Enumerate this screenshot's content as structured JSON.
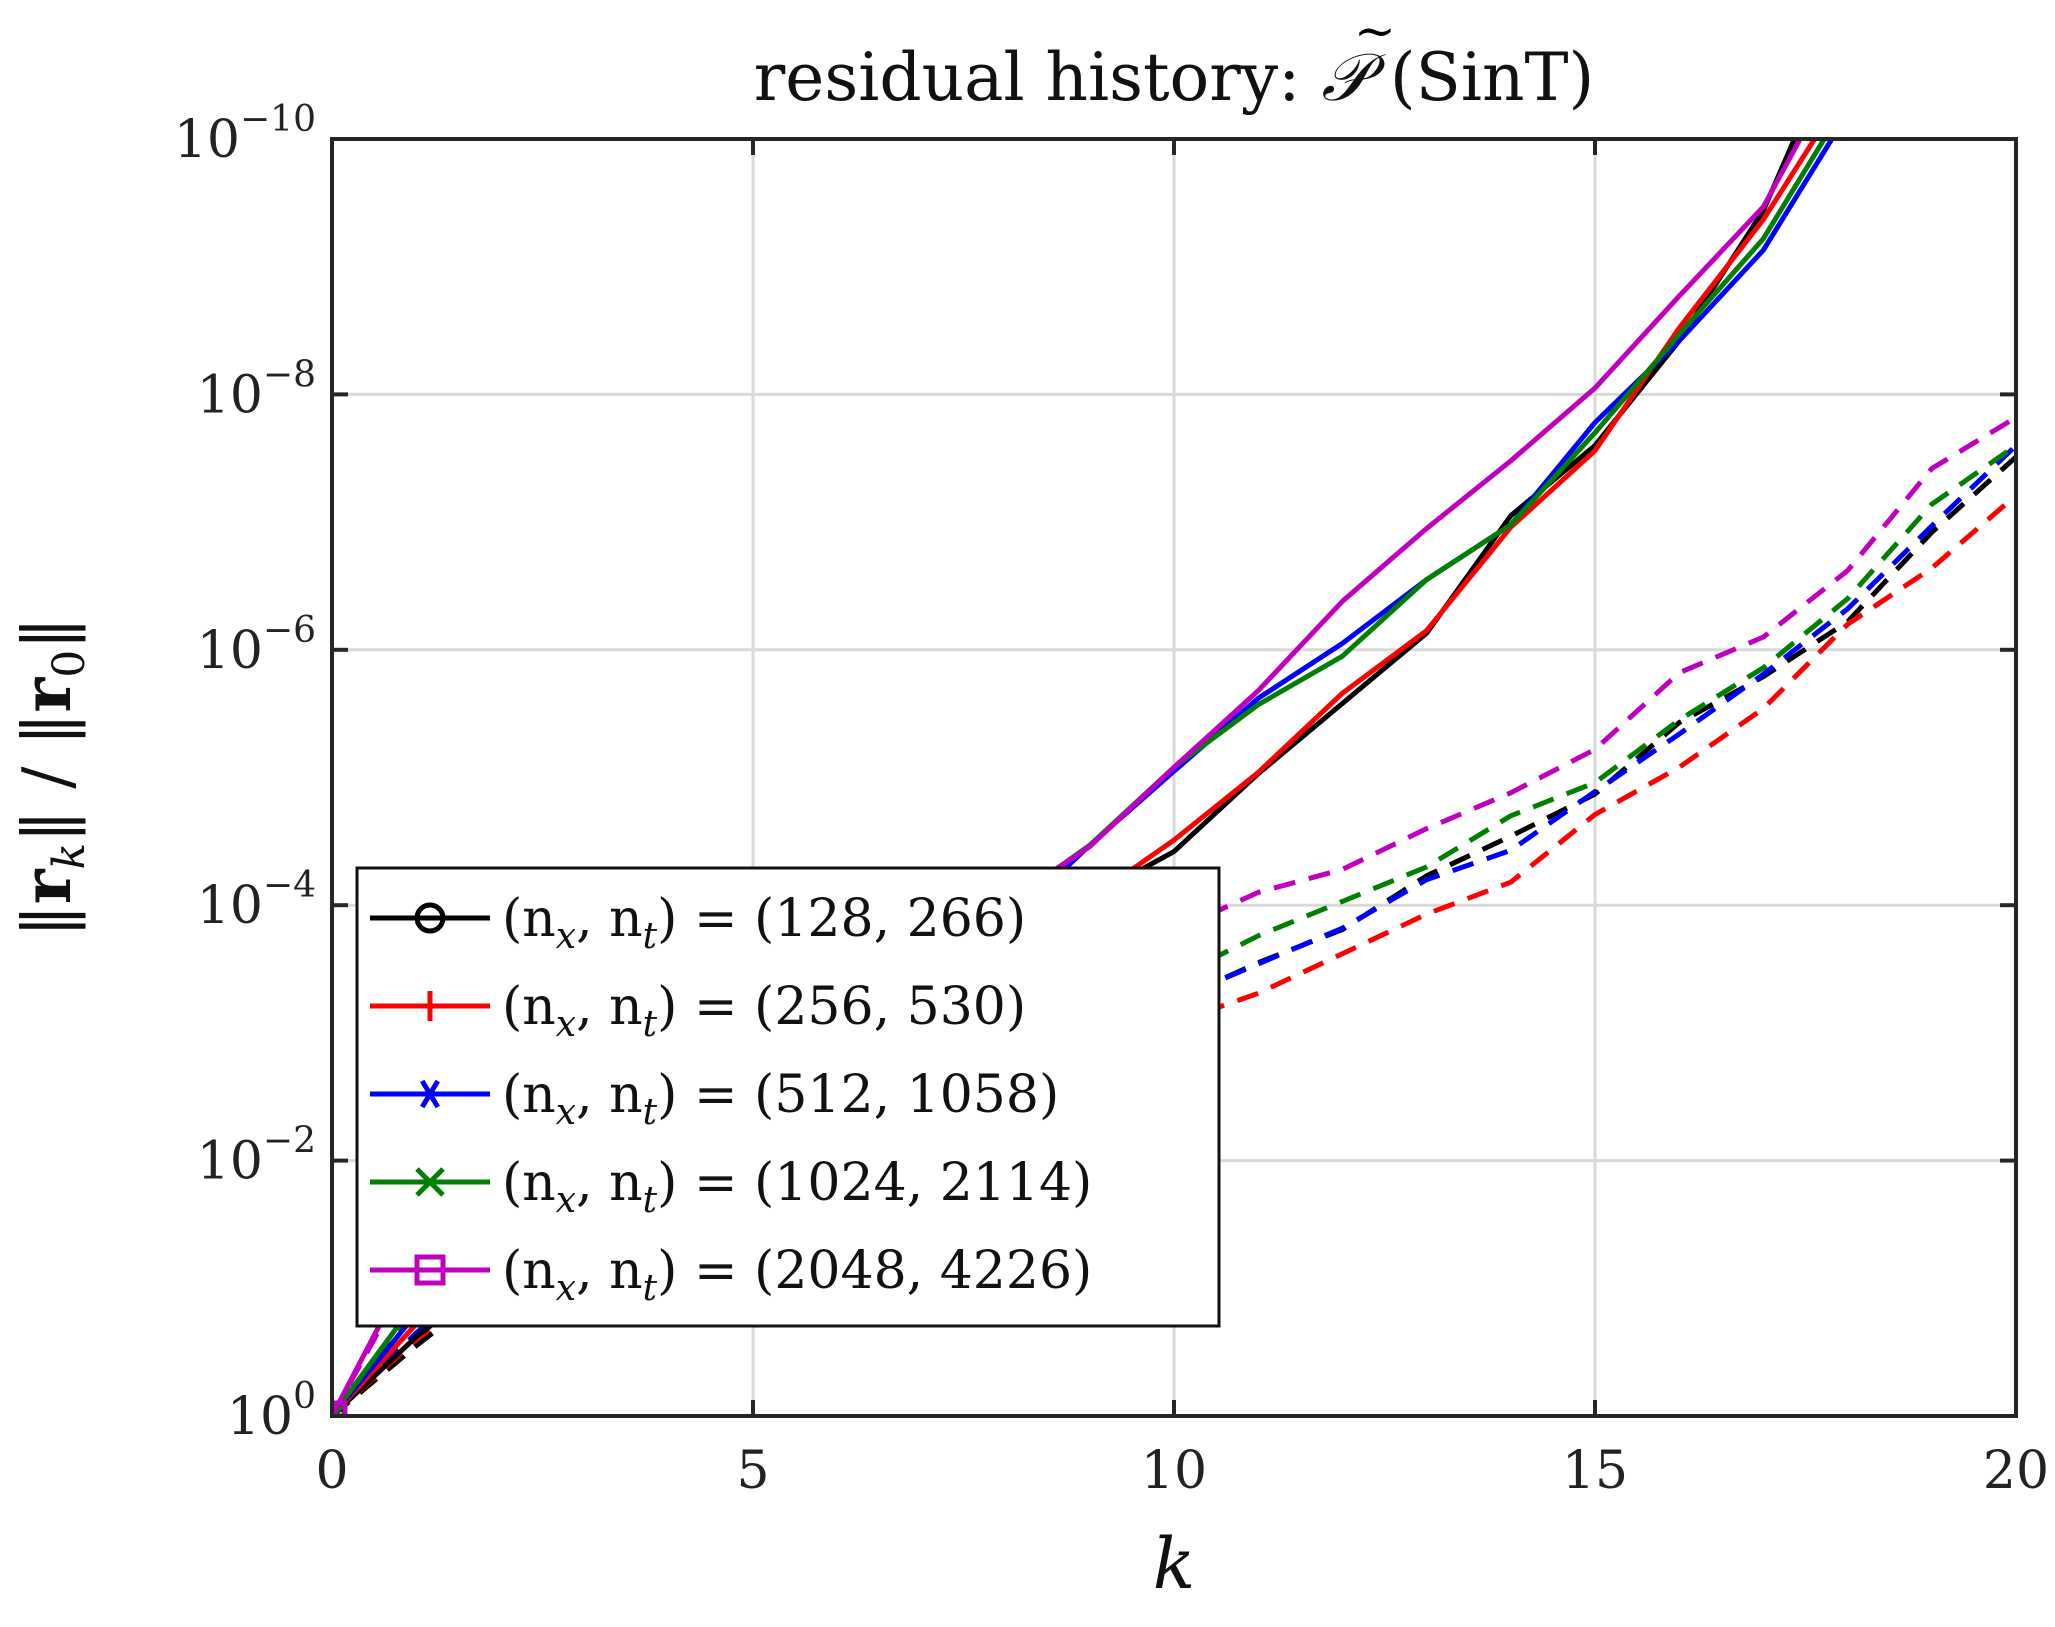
{
  "chart_data": {
    "type": "line",
    "title": "residual history: P̃ (SinT)",
    "title_prefix": "residual history: ",
    "title_symbol": "𝒫",
    "title_suffix": " (SinT)",
    "xlabel": "k",
    "ylabel": "||r_k|| / ||r_0||",
    "ylabel_parts": [
      "‖",
      "r",
      "k",
      "‖ / ‖",
      "r",
      "0",
      "‖"
    ],
    "xscale": "linear",
    "yscale": "log",
    "xlim": [
      0,
      20
    ],
    "ylim_exponent": [
      -10,
      0
    ],
    "xticks": [
      0,
      5,
      10,
      15,
      20
    ],
    "yticks_exponent": [
      0,
      -2,
      -4,
      -6,
      -8,
      -10
    ],
    "ytick_base": "10",
    "grid": true,
    "legend_location": "lower-left",
    "line_styles": {
      "solid": "preconditioner variant A",
      "dashed": "preconditioner variant B"
    },
    "series": [
      {
        "name": "(n_x, n_t) = (128, 266)",
        "legend_math": "(n",
        "sub1": "x",
        "mid": ", n",
        "sub2": "t",
        "tail": ") = (128, 266)",
        "color": "#000000",
        "marker": "circle",
        "solid_log10": [
          [
            0,
            0
          ],
          [
            1,
            -0.62
          ],
          [
            2,
            -1.12
          ],
          [
            3,
            -1.52
          ],
          [
            4,
            -1.66
          ],
          [
            5,
            -2.48
          ],
          [
            6,
            -2.72
          ],
          [
            7,
            -3.22
          ],
          [
            8,
            -3.6
          ],
          [
            9,
            -4.06
          ],
          [
            10,
            -4.42
          ],
          [
            11,
            -5.03
          ],
          [
            12,
            -5.58
          ],
          [
            13,
            -6.13
          ],
          [
            14,
            -7.05
          ],
          [
            15,
            -7.6
          ],
          [
            16,
            -8.42
          ],
          [
            17,
            -9.44
          ],
          [
            17.5,
            -10.2
          ]
        ],
        "dashed_log10": [
          [
            0,
            0
          ],
          [
            1,
            -0.55
          ],
          [
            2,
            -1.06
          ],
          [
            3,
            -1.45
          ],
          [
            4,
            -1.66
          ],
          [
            5,
            -1.9
          ],
          [
            6,
            -2.02
          ],
          [
            7,
            -2.28
          ],
          [
            8,
            -2.51
          ],
          [
            9,
            -2.79
          ],
          [
            10,
            -3.25
          ],
          [
            11,
            -3.55
          ],
          [
            12,
            -3.81
          ],
          [
            13,
            -4.23
          ],
          [
            14,
            -4.54
          ],
          [
            15,
            -4.87
          ],
          [
            16,
            -5.43
          ],
          [
            17,
            -5.79
          ],
          [
            18,
            -6.22
          ],
          [
            19,
            -6.92
          ],
          [
            20,
            -7.51
          ]
        ]
      },
      {
        "name": "(n_x, n_t) = (256, 530)",
        "legend_math": "(n",
        "sub1": "x",
        "mid": ", n",
        "sub2": "t",
        "tail": ") = (256, 530)",
        "color": "#ff0000",
        "marker": "plus",
        "solid_log10": [
          [
            0,
            0
          ],
          [
            1,
            -0.72
          ],
          [
            2,
            -1.22
          ],
          [
            3,
            -1.55
          ],
          [
            4,
            -1.78
          ],
          [
            5,
            -2.41
          ],
          [
            6,
            -2.7
          ],
          [
            7,
            -3.26
          ],
          [
            8,
            -3.62
          ],
          [
            9,
            -4.05
          ],
          [
            10,
            -4.51
          ],
          [
            11,
            -5.04
          ],
          [
            12,
            -5.66
          ],
          [
            13,
            -6.15
          ],
          [
            14,
            -6.96
          ],
          [
            15,
            -7.56
          ],
          [
            16,
            -8.52
          ],
          [
            17,
            -9.37
          ],
          [
            17.8,
            -10.2
          ]
        ],
        "dashed_log10": [
          [
            0,
            0
          ],
          [
            1,
            -0.6
          ],
          [
            2,
            -1.1
          ],
          [
            3,
            -1.42
          ],
          [
            4,
            -1.66
          ],
          [
            5,
            -1.88
          ],
          [
            6,
            -2.17
          ],
          [
            7,
            -2.33
          ],
          [
            8,
            -2.52
          ],
          [
            9,
            -2.84
          ],
          [
            10,
            -3.08
          ],
          [
            11,
            -3.31
          ],
          [
            12,
            -3.62
          ],
          [
            13,
            -3.93
          ],
          [
            14,
            -4.18
          ],
          [
            15,
            -4.71
          ],
          [
            16,
            -5.08
          ],
          [
            17,
            -5.54
          ],
          [
            18,
            -6.2
          ],
          [
            19,
            -6.64
          ],
          [
            20,
            -7.21
          ]
        ]
      },
      {
        "name": "(n_x, n_t) = (512, 1058)",
        "legend_math": "(n",
        "sub1": "x",
        "mid": ", n",
        "sub2": "t",
        "tail": ") = (512, 1058)",
        "color": "#0000ff",
        "marker": "asterisk",
        "solid_log10": [
          [
            0,
            0
          ],
          [
            1,
            -0.8
          ],
          [
            2,
            -1.32
          ],
          [
            3,
            -1.62
          ],
          [
            4,
            -1.85
          ],
          [
            5,
            -2.42
          ],
          [
            6,
            -2.75
          ],
          [
            7,
            -3.3
          ],
          [
            8,
            -3.85
          ],
          [
            9,
            -4.47
          ],
          [
            10,
            -5.05
          ],
          [
            11,
            -5.62
          ],
          [
            12,
            -6.05
          ],
          [
            13,
            -6.55
          ],
          [
            14,
            -6.98
          ],
          [
            15,
            -7.78
          ],
          [
            16,
            -8.42
          ],
          [
            17,
            -9.13
          ],
          [
            18,
            -10.2
          ]
        ],
        "dashed_log10": [
          [
            0,
            0
          ],
          [
            1,
            -0.65
          ],
          [
            2,
            -1.2
          ],
          [
            3,
            -1.5
          ],
          [
            4,
            -1.73
          ],
          [
            5,
            -2.02
          ],
          [
            6,
            -2.25
          ],
          [
            7,
            -2.49
          ],
          [
            8,
            -2.73
          ],
          [
            9,
            -2.92
          ],
          [
            10,
            -3.26
          ],
          [
            11,
            -3.54
          ],
          [
            12,
            -3.82
          ],
          [
            13,
            -4.2
          ],
          [
            14,
            -4.43
          ],
          [
            15,
            -4.89
          ],
          [
            16,
            -5.34
          ],
          [
            17,
            -5.81
          ],
          [
            18,
            -6.32
          ],
          [
            19,
            -6.97
          ],
          [
            20,
            -7.6
          ]
        ]
      },
      {
        "name": "(n_x, n_t) = (1024, 2114)",
        "legend_math": "(n",
        "sub1": "x",
        "mid": ", n",
        "sub2": "t",
        "tail": ") = (1024, 2114)",
        "color": "#007f00",
        "marker": "x",
        "solid_log10": [
          [
            0,
            0
          ],
          [
            1,
            -0.9
          ],
          [
            2,
            -1.45
          ],
          [
            3,
            -1.75
          ],
          [
            4,
            -2.0
          ],
          [
            5,
            -2.58
          ],
          [
            6,
            -2.85
          ],
          [
            7,
            -3.35
          ],
          [
            8,
            -4.0
          ],
          [
            9,
            -4.47
          ],
          [
            10,
            -5.08
          ],
          [
            11,
            -5.57
          ],
          [
            12,
            -5.95
          ],
          [
            13,
            -6.55
          ],
          [
            14,
            -6.98
          ],
          [
            15,
            -7.7
          ],
          [
            16,
            -8.47
          ],
          [
            17,
            -9.22
          ],
          [
            18,
            -10.3
          ]
        ],
        "dashed_log10": [
          [
            0,
            0
          ],
          [
            1,
            -0.82
          ],
          [
            2,
            -1.38
          ],
          [
            3,
            -1.7
          ],
          [
            4,
            -1.92
          ],
          [
            5,
            -2.07
          ],
          [
            6,
            -2.29
          ],
          [
            7,
            -2.55
          ],
          [
            8,
            -2.85
          ],
          [
            9,
            -3.11
          ],
          [
            10,
            -3.43
          ],
          [
            11,
            -3.76
          ],
          [
            12,
            -4.03
          ],
          [
            13,
            -4.3
          ],
          [
            14,
            -4.7
          ],
          [
            15,
            -4.96
          ],
          [
            16,
            -5.45
          ],
          [
            17,
            -5.86
          ],
          [
            18,
            -6.4
          ],
          [
            19,
            -7.14
          ],
          [
            20,
            -7.6
          ]
        ]
      },
      {
        "name": "(n_x, n_t) = (2048, 4226)",
        "legend_math": "(n",
        "sub1": "x",
        "mid": ", n",
        "sub2": "t",
        "tail": ") = (2048, 4226)",
        "color": "#bf00bf",
        "marker": "square",
        "solid_log10": [
          [
            0,
            0
          ],
          [
            1,
            -1.26
          ],
          [
            2,
            -1.65
          ],
          [
            3,
            -1.95
          ],
          [
            4,
            -2.25
          ],
          [
            5,
            -2.75
          ],
          [
            6,
            -3.09
          ],
          [
            7,
            -3.6
          ],
          [
            8,
            -4.02
          ],
          [
            9,
            -4.46
          ],
          [
            10,
            -5.08
          ],
          [
            11,
            -5.68
          ],
          [
            12,
            -6.38
          ],
          [
            13,
            -6.95
          ],
          [
            14,
            -7.48
          ],
          [
            15,
            -8.05
          ],
          [
            16,
            -8.77
          ],
          [
            17,
            -9.47
          ],
          [
            17.6,
            -10.2
          ]
        ],
        "dashed_log10": [
          [
            0,
            0
          ],
          [
            1,
            -1.2
          ],
          [
            2,
            -1.62
          ],
          [
            3,
            -1.95
          ],
          [
            4,
            -2.1
          ],
          [
            5,
            -2.32
          ],
          [
            6,
            -2.52
          ],
          [
            7,
            -2.75
          ],
          [
            8,
            -3.1
          ],
          [
            9,
            -3.46
          ],
          [
            10,
            -3.8
          ],
          [
            11,
            -4.1
          ],
          [
            12,
            -4.28
          ],
          [
            13,
            -4.6
          ],
          [
            14,
            -4.88
          ],
          [
            15,
            -5.22
          ],
          [
            16,
            -5.82
          ],
          [
            17,
            -6.1
          ],
          [
            18,
            -6.62
          ],
          [
            19,
            -7.42
          ],
          [
            20,
            -7.82
          ]
        ]
      }
    ]
  }
}
